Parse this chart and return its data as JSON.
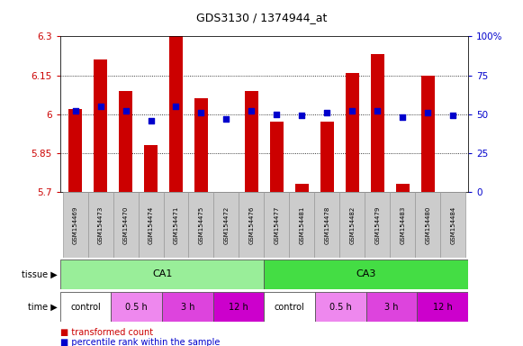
{
  "title": "GDS3130 / 1374944_at",
  "samples": [
    "GSM154469",
    "GSM154473",
    "GSM154470",
    "GSM154474",
    "GSM154471",
    "GSM154475",
    "GSM154472",
    "GSM154476",
    "GSM154477",
    "GSM154481",
    "GSM154478",
    "GSM154482",
    "GSM154479",
    "GSM154483",
    "GSM154480",
    "GSM154484"
  ],
  "transformed_count": [
    6.02,
    6.21,
    6.09,
    5.88,
    6.3,
    6.06,
    5.7,
    6.09,
    5.97,
    5.73,
    5.97,
    6.16,
    6.23,
    5.73,
    6.15,
    5.7
  ],
  "percentile_rank": [
    52,
    55,
    52,
    46,
    55,
    51,
    47,
    52,
    50,
    49,
    51,
    52,
    52,
    48,
    51,
    49
  ],
  "ylim_left": [
    5.7,
    6.3
  ],
  "ylim_right": [
    0,
    100
  ],
  "yticks_left": [
    5.7,
    5.85,
    6.0,
    6.15,
    6.3
  ],
  "yticks_right": [
    0,
    25,
    50,
    75,
    100
  ],
  "ytick_labels_left": [
    "5.7",
    "5.85",
    "6",
    "6.15",
    "6.3"
  ],
  "ytick_labels_right": [
    "0",
    "25",
    "50",
    "75",
    "100%"
  ],
  "grid_values": [
    5.85,
    6.0,
    6.15
  ],
  "bar_color": "#cc0000",
  "dot_color": "#0000cc",
  "bg_color": "#ffffff",
  "tissue_groups": [
    {
      "label": "CA1",
      "start": 0,
      "end": 8,
      "color": "#99ee99"
    },
    {
      "label": "CA3",
      "start": 8,
      "end": 16,
      "color": "#44dd44"
    }
  ],
  "time_groups": [
    {
      "label": "control",
      "start": 0,
      "end": 2,
      "color": "#ffffff"
    },
    {
      "label": "0.5 h",
      "start": 2,
      "end": 4,
      "color": "#ee88ee"
    },
    {
      "label": "3 h",
      "start": 4,
      "end": 6,
      "color": "#dd44dd"
    },
    {
      "label": "12 h",
      "start": 6,
      "end": 8,
      "color": "#cc00cc"
    },
    {
      "label": "control",
      "start": 8,
      "end": 10,
      "color": "#ffffff"
    },
    {
      "label": "0.5 h",
      "start": 10,
      "end": 12,
      "color": "#ee88ee"
    },
    {
      "label": "3 h",
      "start": 12,
      "end": 14,
      "color": "#dd44dd"
    },
    {
      "label": "12 h",
      "start": 14,
      "end": 16,
      "color": "#cc00cc"
    }
  ],
  "xticklabel_bg": "#cccccc",
  "ylabel_left_color": "#cc0000",
  "ylabel_right_color": "#0000cc",
  "legend_bar_color": "#cc0000",
  "legend_dot_color": "#0000cc"
}
